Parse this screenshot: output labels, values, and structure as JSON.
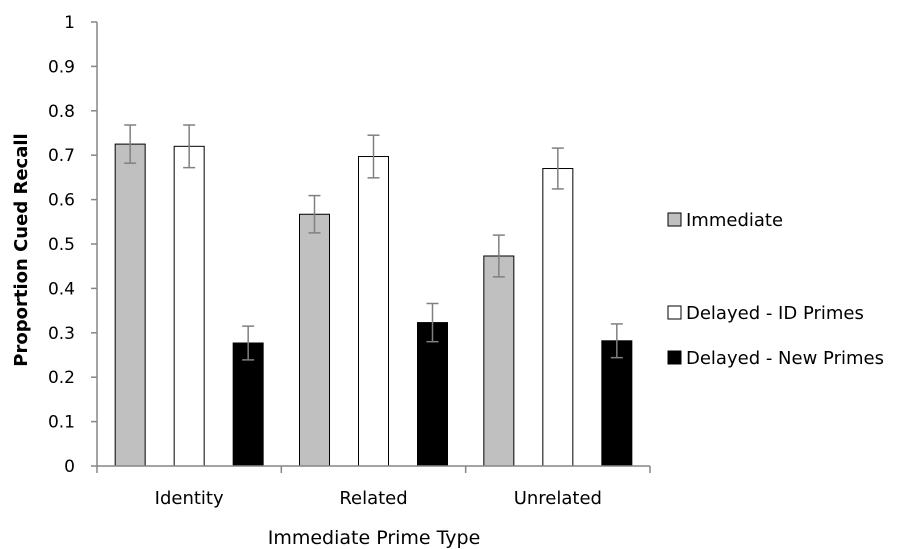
{
  "chart_data": {
    "type": "bar",
    "title": "",
    "xlabel": "Immediate Prime Type",
    "ylabel": "Proportion Cued Recall",
    "ylim": [
      0,
      1
    ],
    "yticks": [
      "0",
      "0.1",
      "0.2",
      "0.3",
      "0.4",
      "0.5",
      "0.6",
      "0.7",
      "0.8",
      "0.9",
      "1"
    ],
    "categories": [
      "Identity",
      "Related",
      "Unrelated"
    ],
    "grid": false,
    "legend_position": "right",
    "series": [
      {
        "name": "Immediate",
        "color": "#c0c0c0",
        "values": [
          0.725,
          0.567,
          0.473
        ],
        "errors": [
          0.043,
          0.042,
          0.047
        ]
      },
      {
        "name": "Delayed - ID Primes",
        "color": "#ffffff",
        "values": [
          0.72,
          0.697,
          0.67
        ],
        "errors": [
          0.048,
          0.048,
          0.046
        ]
      },
      {
        "name": "Delayed - New Primes",
        "color": "#000000",
        "values": [
          0.277,
          0.323,
          0.282
        ],
        "errors": [
          0.038,
          0.043,
          0.038
        ]
      }
    ]
  }
}
